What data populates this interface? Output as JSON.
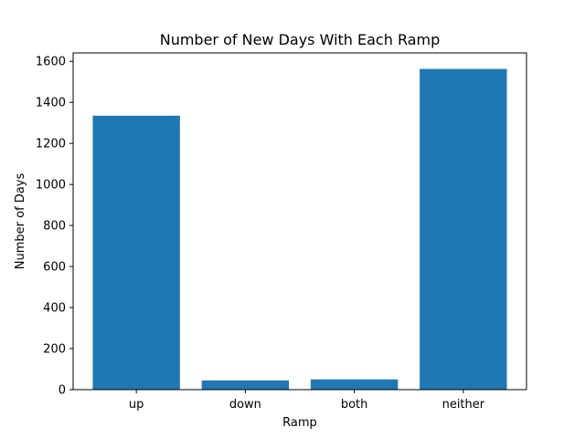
{
  "chart_data": {
    "type": "bar",
    "title": "Number of New Days With Each Ramp",
    "xlabel": "Ramp",
    "ylabel": "Number of Days",
    "categories": [
      "up",
      "down",
      "both",
      "neither"
    ],
    "values": [
      1335,
      45,
      50,
      1563
    ],
    "ylim": [
      0,
      1641
    ],
    "yticks": [
      0,
      200,
      400,
      600,
      800,
      1000,
      1200,
      1400,
      1600
    ],
    "grid": false,
    "legend": "none",
    "bar_color": "#1f77b4"
  }
}
